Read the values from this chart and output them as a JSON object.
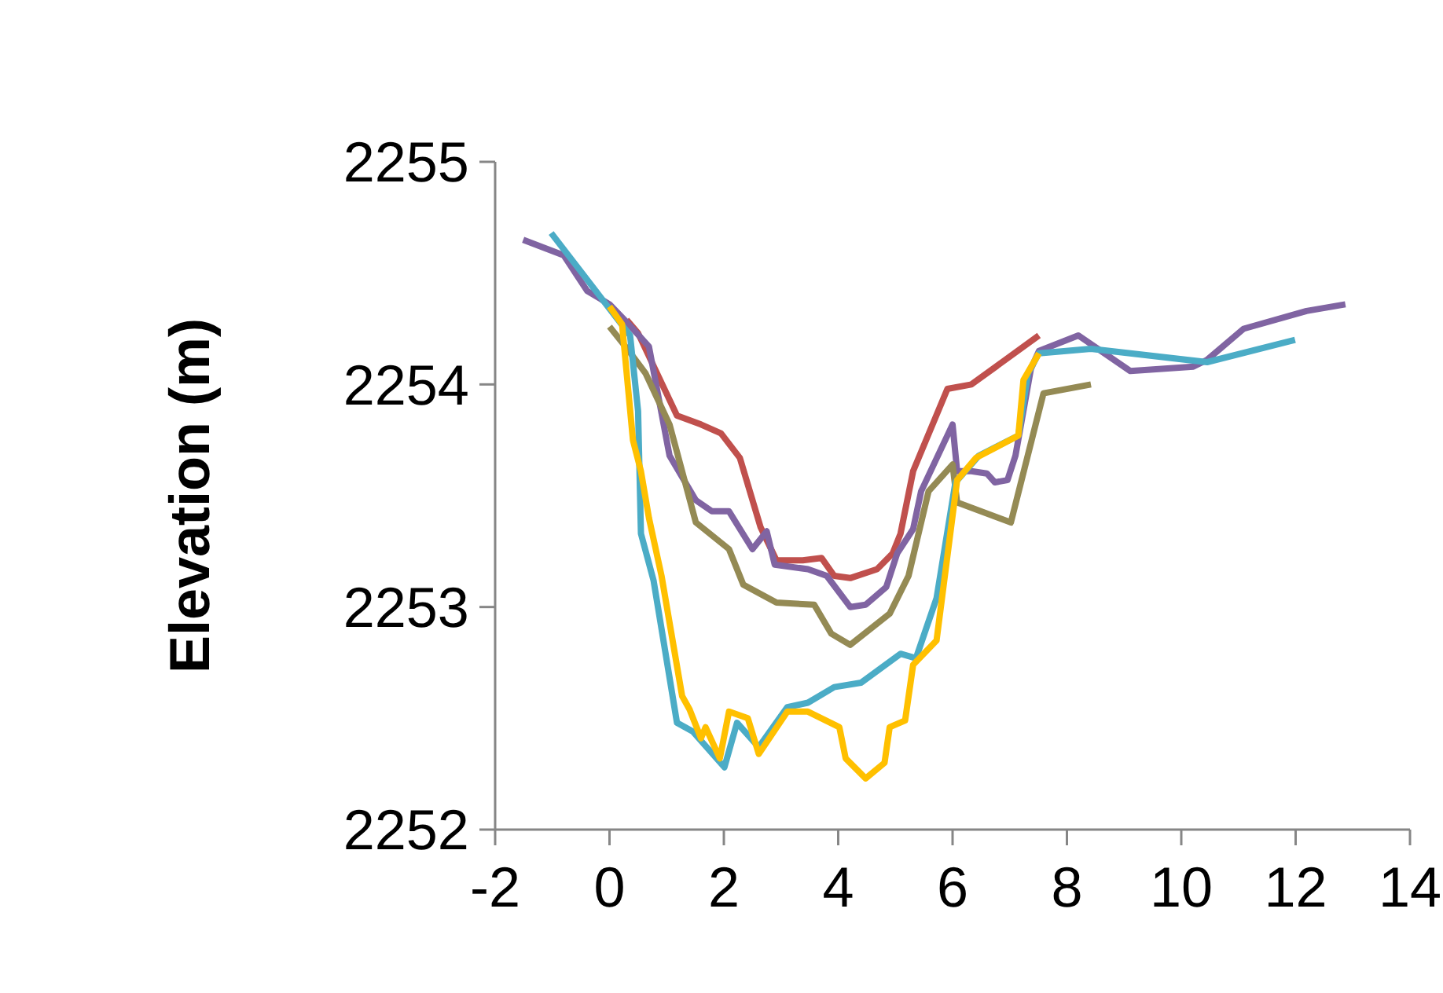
{
  "chart_data": {
    "type": "line",
    "ylabel": "Elevation (m)",
    "xlim": [
      -2,
      14
    ],
    "xticks": [
      -2,
      0,
      2,
      4,
      6,
      8,
      10,
      12,
      14
    ],
    "ylim": [
      2252,
      2255
    ],
    "yticks": [
      2252,
      2253,
      2254,
      2255
    ],
    "marker": "none",
    "line_style": "solid",
    "series": [
      {
        "color": "#c0504d",
        "x": [
          0.3,
          0.5,
          1.18,
          1.6,
          1.95,
          2.28,
          2.64,
          2.92,
          3.38,
          3.71,
          3.93,
          4.21,
          4.68,
          4.95,
          5.09,
          5.31,
          5.91,
          6.33,
          7.51
        ],
        "values": [
          2254.29,
          2254.23,
          2253.86,
          2253.82,
          2253.78,
          2253.67,
          2253.36,
          2253.21,
          2253.21,
          2253.22,
          2253.14,
          2253.13,
          2253.17,
          2253.24,
          2253.33,
          2253.61,
          2253.98,
          2254.0,
          2254.22
        ]
      },
      {
        "color": "#8064a2",
        "x": [
          -1.51,
          -0.8,
          -0.39,
          0,
          0.3,
          0.69,
          1.05,
          1.51,
          1.79,
          2.09,
          2.5,
          2.75,
          2.89,
          3.47,
          3.8,
          4.21,
          4.48,
          4.84,
          5.03,
          5.31,
          5.45,
          6.0,
          6.08,
          6.33,
          6.6,
          6.74,
          6.96,
          7.1,
          7.37,
          7.51,
          8.2,
          9.11,
          10.21,
          10.45,
          11.09,
          12.19,
          12.87
        ],
        "values": [
          2254.65,
          2254.58,
          2254.42,
          2254.36,
          2254.28,
          2254.17,
          2253.68,
          2253.48,
          2253.43,
          2253.43,
          2253.26,
          2253.34,
          2253.19,
          2253.17,
          2253.14,
          2253.0,
          2253.01,
          2253.09,
          2253.24,
          2253.35,
          2253.52,
          2253.82,
          2253.61,
          2253.61,
          2253.6,
          2253.56,
          2253.57,
          2253.68,
          2254.07,
          2254.15,
          2254.22,
          2254.06,
          2254.08,
          2254.11,
          2254.25,
          2254.33,
          2254.36
        ]
      },
      {
        "color": "#948a54",
        "x": [
          0,
          0.28,
          0.63,
          1.05,
          1.51,
          2.09,
          2.34,
          2.92,
          3.58,
          3.88,
          4.21,
          4.9,
          5.23,
          5.58,
          6.0,
          6.08,
          7.02,
          7.59,
          8.42
        ],
        "values": [
          2254.26,
          2254.17,
          2254.05,
          2253.82,
          2253.38,
          2253.26,
          2253.1,
          2253.02,
          2253.01,
          2252.88,
          2252.83,
          2252.97,
          2253.14,
          2253.52,
          2253.64,
          2253.47,
          2253.38,
          2253.96,
          2254.0
        ]
      },
      {
        "color": "#4bacc6",
        "x": [
          -1.02,
          -0.06,
          0.36,
          0.5,
          0.55,
          0.77,
          1.18,
          1.46,
          2.01,
          2.23,
          2.61,
          3.11,
          3.47,
          3.93,
          4.4,
          5.09,
          5.36,
          5.72,
          6.05,
          6.46,
          7.15,
          7.32,
          7.51,
          8.42,
          10.45,
          11.99
        ],
        "values": [
          2254.68,
          2254.36,
          2254.22,
          2253.88,
          2253.33,
          2253.12,
          2252.48,
          2252.44,
          2252.28,
          2252.48,
          2252.37,
          2252.55,
          2252.57,
          2252.64,
          2252.66,
          2252.79,
          2252.77,
          2253.04,
          2253.56,
          2253.68,
          2253.77,
          2254.05,
          2254.14,
          2254.16,
          2254.1,
          2254.2
        ]
      },
      {
        "color": "#ffc000",
        "x": [
          0,
          0.22,
          0.41,
          0.55,
          0.69,
          0.91,
          1.27,
          1.4,
          1.6,
          1.68,
          1.93,
          2.09,
          2.42,
          2.61,
          3.11,
          3.47,
          4.02,
          4.13,
          4.48,
          4.81,
          4.9,
          5.17,
          5.31,
          5.72,
          6.08,
          6.41,
          7.15,
          7.24,
          7.51
        ],
        "values": [
          2254.35,
          2254.27,
          2253.75,
          2253.61,
          2253.4,
          2253.14,
          2252.6,
          2252.54,
          2252.41,
          2252.46,
          2252.32,
          2252.53,
          2252.5,
          2252.34,
          2252.53,
          2252.53,
          2252.46,
          2252.32,
          2252.23,
          2252.3,
          2252.46,
          2252.49,
          2252.74,
          2252.85,
          2253.57,
          2253.67,
          2253.77,
          2254.02,
          2254.14
        ]
      }
    ]
  }
}
